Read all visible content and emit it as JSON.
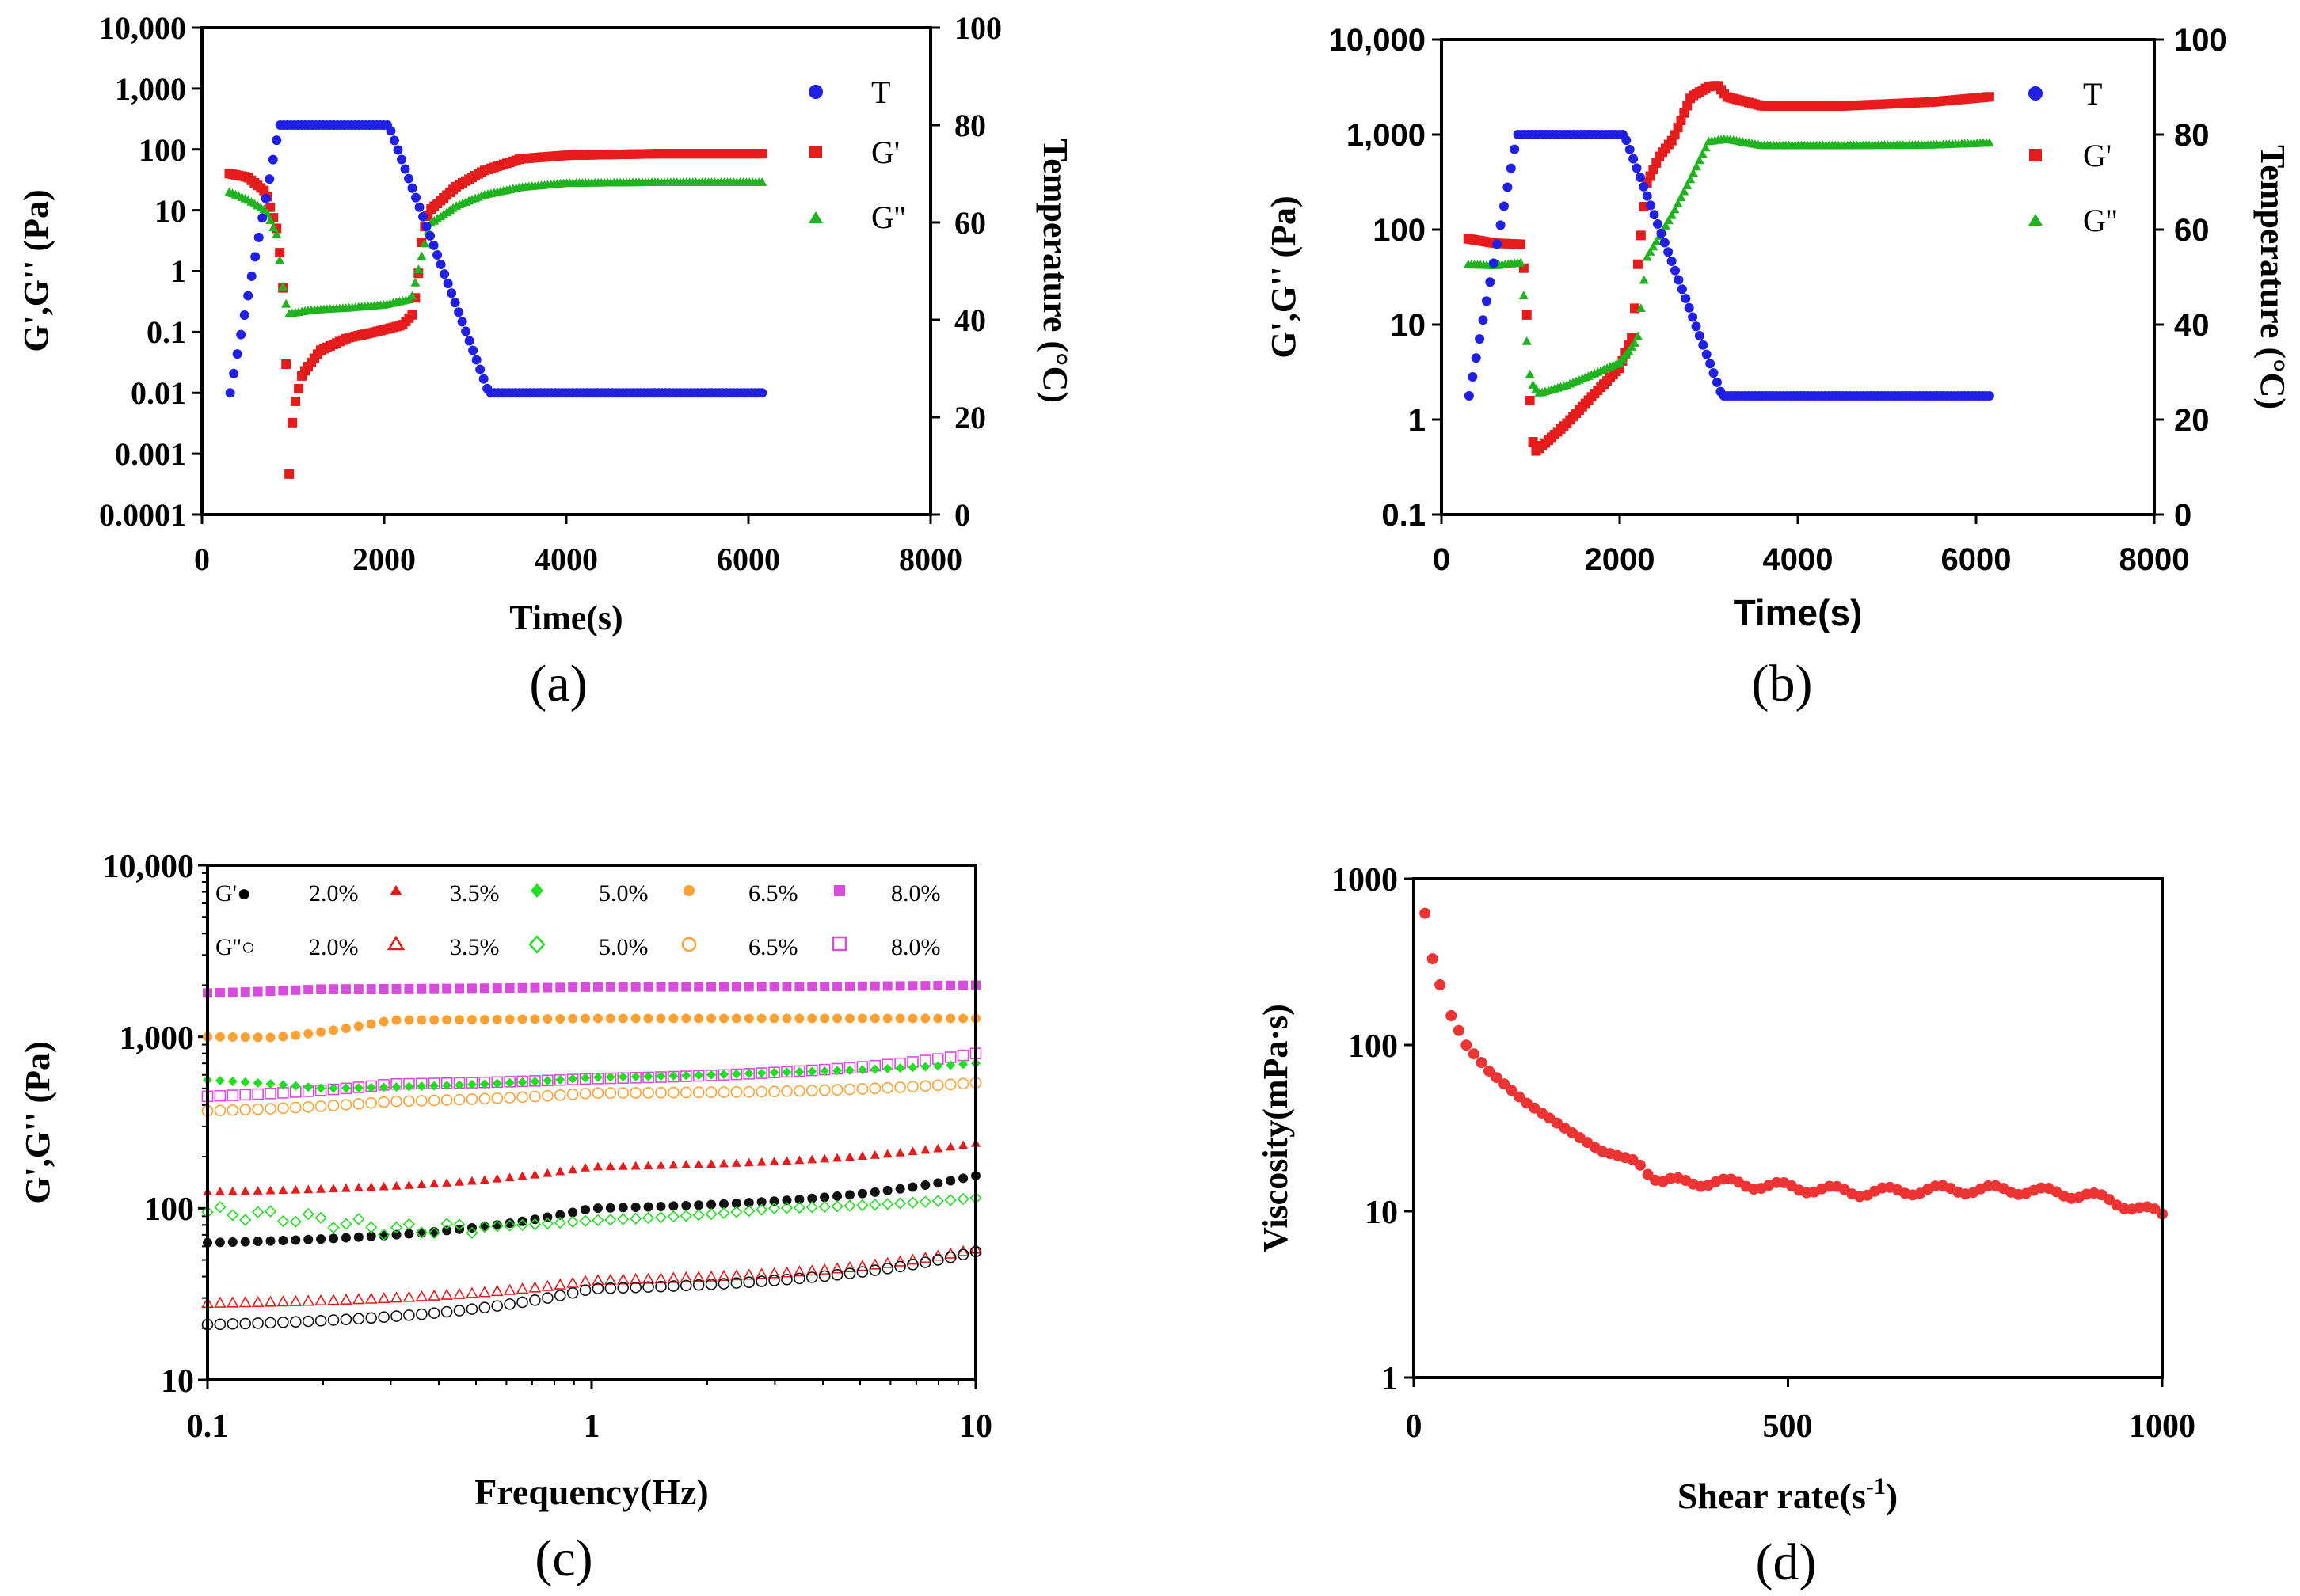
{
  "chart_data": [
    {
      "id": "a",
      "type": "scatter",
      "caption": "(a)",
      "xlabel": "Time(s)",
      "ylabel": "G',G'' (Pa)",
      "ylabel_right": "Temperature (°C)",
      "xlim": [
        0,
        8000
      ],
      "ylim": [
        0.0001,
        10000
      ],
      "yscale": "log",
      "ylim_right": [
        0,
        100
      ],
      "xticks": [
        "0",
        "2000",
        "4000",
        "6000",
        "8000"
      ],
      "yticks": [
        "10,000",
        "1,000",
        "100",
        "10",
        "1",
        "0.1",
        "0.01",
        "0.001",
        "0.0001"
      ],
      "yticks_right": [
        "100",
        "80",
        "60",
        "40",
        "20",
        "0"
      ],
      "legend": [
        {
          "name": "T",
          "marker": "circle",
          "color": "#1f1fe6"
        },
        {
          "name": "G'",
          "marker": "square",
          "color": "#e61c1c"
        },
        {
          "name": "G''",
          "marker": "triangle",
          "color": "#1fb31f"
        }
      ],
      "series": [
        {
          "name": "T",
          "axis": "right",
          "points": [
            [
              310,
              25
            ],
            [
              850,
              80
            ],
            [
              2050,
              80
            ],
            [
              3150,
              25
            ],
            [
              6150,
              25
            ]
          ]
        },
        {
          "name": "G'",
          "axis": "left",
          "points": [
            [
              300,
              40
            ],
            [
              500,
              35
            ],
            [
              700,
              20
            ],
            [
              820,
              5
            ],
            [
              880,
              1
            ],
            [
              920,
              0.05
            ],
            [
              950,
              0.0003
            ],
            [
              1000,
              0.005
            ],
            [
              1100,
              0.02
            ],
            [
              1300,
              0.05
            ],
            [
              1600,
              0.08
            ],
            [
              1900,
              0.1
            ],
            [
              2200,
              0.13
            ],
            [
              2320,
              0.2
            ],
            [
              2380,
              1
            ],
            [
              2420,
              4
            ],
            [
              2500,
              10
            ],
            [
              2800,
              25
            ],
            [
              3100,
              45
            ],
            [
              3500,
              70
            ],
            [
              4000,
              80
            ],
            [
              5000,
              85
            ],
            [
              6150,
              85
            ]
          ]
        },
        {
          "name": "G''",
          "axis": "left",
          "points": [
            [
              300,
              20
            ],
            [
              500,
              15
            ],
            [
              700,
              10
            ],
            [
              820,
              4
            ],
            [
              900,
              0.4
            ],
            [
              950,
              0.2
            ],
            [
              1200,
              0.23
            ],
            [
              1600,
              0.25
            ],
            [
              2000,
              0.28
            ],
            [
              2300,
              0.35
            ],
            [
              2400,
              1.5
            ],
            [
              2500,
              6
            ],
            [
              2800,
              12
            ],
            [
              3100,
              18
            ],
            [
              3500,
              24
            ],
            [
              4000,
              28
            ],
            [
              5000,
              29
            ],
            [
              6150,
              29
            ]
          ]
        }
      ]
    },
    {
      "id": "b",
      "type": "scatter",
      "caption": "(b)",
      "xlabel": "Time(s)",
      "ylabel": "G',G'' (Pa)",
      "ylabel_right": "Temperature (°C)",
      "xlim": [
        0,
        8000
      ],
      "ylim": [
        0.1,
        10000
      ],
      "yscale": "log",
      "ylim_right": [
        0,
        100
      ],
      "xticks": [
        "0",
        "2000",
        "4000",
        "6000",
        "8000"
      ],
      "yticks": [
        "10,000",
        "1,000",
        "100",
        "10",
        "1",
        "0.1"
      ],
      "yticks_right": [
        "100",
        "80",
        "60",
        "40",
        "20",
        "0"
      ],
      "legend": [
        {
          "name": "T",
          "marker": "circle",
          "color": "#1f1fe6"
        },
        {
          "name": "G'",
          "marker": "square",
          "color": "#e61c1c"
        },
        {
          "name": "G''",
          "marker": "triangle",
          "color": "#1fb31f"
        }
      ],
      "series": [
        {
          "name": "T",
          "axis": "right",
          "points": [
            [
              310,
              25
            ],
            [
              850,
              80
            ],
            [
              2050,
              80
            ],
            [
              3150,
              25
            ],
            [
              6150,
              25
            ]
          ]
        },
        {
          "name": "G'",
          "axis": "left",
          "points": [
            [
              300,
              80
            ],
            [
              600,
              72
            ],
            [
              900,
              70
            ],
            [
              950,
              20
            ],
            [
              1000,
              1
            ],
            [
              1040,
              0.45
            ],
            [
              1150,
              0.55
            ],
            [
              1400,
              0.9
            ],
            [
              1700,
              1.8
            ],
            [
              2000,
              3.5
            ],
            [
              2150,
              8
            ],
            [
              2200,
              40
            ],
            [
              2300,
              300
            ],
            [
              2450,
              600
            ],
            [
              2600,
              900
            ],
            [
              2800,
              2500
            ],
            [
              3000,
              3200
            ],
            [
              3100,
              3300
            ],
            [
              3200,
              2500
            ],
            [
              3600,
              2000
            ],
            [
              4500,
              2000
            ],
            [
              5500,
              2200
            ],
            [
              6150,
              2500
            ]
          ]
        },
        {
          "name": "G''",
          "axis": "left",
          "points": [
            [
              300,
              43
            ],
            [
              600,
              42
            ],
            [
              900,
              45
            ],
            [
              950,
              8
            ],
            [
              1000,
              2.5
            ],
            [
              1100,
              1.9
            ],
            [
              1400,
              2.3
            ],
            [
              1700,
              3
            ],
            [
              2000,
              4
            ],
            [
              2200,
              7
            ],
            [
              2300,
              50
            ],
            [
              2600,
              150
            ],
            [
              2800,
              350
            ],
            [
              3000,
              850
            ],
            [
              3200,
              900
            ],
            [
              3600,
              770
            ],
            [
              4500,
              770
            ],
            [
              5500,
              780
            ],
            [
              6150,
              820
            ]
          ]
        }
      ]
    },
    {
      "id": "c",
      "type": "scatter",
      "caption": "(c)",
      "xlabel": "Frequency(Hz)",
      "ylabel": "G',G'' (Pa)",
      "xlim": [
        0.1,
        10
      ],
      "xscale": "log",
      "ylim": [
        10,
        10000
      ],
      "yscale": "log",
      "xticks": [
        "0.1",
        "1",
        "10"
      ],
      "yticks": [
        "10,000",
        "1,000",
        "100",
        "10"
      ],
      "legend_row1_label": "G'●",
      "legend_row2_label": "G''○",
      "legend": [
        {
          "name": "2.0%",
          "color": "#111111",
          "filled_marker": "circle",
          "hollow_marker": "circle"
        },
        {
          "name": "3.5%",
          "color": "#e61c1c",
          "filled_marker": "triangle",
          "hollow_marker": "triangle"
        },
        {
          "name": "5.0%",
          "color": "#22dd22",
          "filled_marker": "diamond",
          "hollow_marker": "diamond"
        },
        {
          "name": "6.5%",
          "color": "#ffa033",
          "filled_marker": "circle",
          "hollow_marker": "circle"
        },
        {
          "name": "8.0%",
          "color": "#d94bdc",
          "filled_marker": "square",
          "hollow_marker": "square"
        }
      ],
      "series": [
        {
          "name": "G' 8.0%",
          "filled": true,
          "points": [
            [
              0.1,
              1800
            ],
            [
              0.2,
              1900
            ],
            [
              1,
              1950
            ],
            [
              10,
              2000
            ]
          ]
        },
        {
          "name": "G' 6.5%",
          "filled": true,
          "points": [
            [
              0.1,
              1000
            ],
            [
              0.15,
              990
            ],
            [
              0.3,
              1250
            ],
            [
              1,
              1280
            ],
            [
              10,
              1280
            ]
          ]
        },
        {
          "name": "G'' 8.0%",
          "filled": false,
          "points": [
            [
              0.1,
              450
            ],
            [
              0.3,
              530
            ],
            [
              1,
              570
            ],
            [
              3,
              620
            ],
            [
              10,
              800
            ]
          ]
        },
        {
          "name": "G' 5.0%",
          "filled": true,
          "points": [
            [
              0.1,
              560
            ],
            [
              0.2,
              500
            ],
            [
              1,
              580
            ],
            [
              3,
              620
            ],
            [
              10,
              700
            ]
          ]
        },
        {
          "name": "G'' 6.5%",
          "filled": false,
          "points": [
            [
              0.1,
              370
            ],
            [
              0.3,
              420
            ],
            [
              1,
              470
            ],
            [
              3,
              480
            ],
            [
              10,
              540
            ]
          ]
        },
        {
          "name": "G' 3.5%",
          "filled": true,
          "points": [
            [
              0.1,
              125
            ],
            [
              1,
              175
            ],
            [
              10,
              240
            ]
          ]
        },
        {
          "name": "G' 2.0%",
          "filled": true,
          "points": [
            [
              0.1,
              63
            ],
            [
              1,
              100
            ],
            [
              10,
              155
            ]
          ]
        },
        {
          "name": "G'' 5.0%",
          "filled": false,
          "points": [
            [
              0.1,
              95
            ],
            [
              0.2,
              85
            ],
            [
              0.3,
              75
            ],
            [
              1,
              85
            ],
            [
              3,
              100
            ],
            [
              10,
              115
            ]
          ]
        },
        {
          "name": "G'' 3.5%",
          "filled": false,
          "points": [
            [
              0.1,
              28
            ],
            [
              1,
              38
            ],
            [
              10,
              58
            ]
          ]
        },
        {
          "name": "G'' 2.0%",
          "filled": false,
          "points": [
            [
              0.1,
              21
            ],
            [
              1,
              34
            ],
            [
              10,
              56
            ]
          ]
        }
      ]
    },
    {
      "id": "d",
      "type": "scatter",
      "caption": "(d)",
      "xlabel": "Shear rate(s",
      "xlabel_sup": "-1",
      "xlabel_close": ")",
      "ylabel": "Viscosity(mPa·s)",
      "xlim": [
        0,
        1000
      ],
      "ylim": [
        1,
        1000
      ],
      "yscale": "log",
      "xticks": [
        "0",
        "500",
        "1000"
      ],
      "yticks": [
        "1000",
        "100",
        "10",
        "1"
      ],
      "series": [
        {
          "name": "Viscosity",
          "color": "#ee3333",
          "points": [
            [
              15,
              620
            ],
            [
              25,
              330
            ],
            [
              35,
              230
            ],
            [
              50,
              150
            ],
            [
              70,
              100
            ],
            [
              100,
              70
            ],
            [
              150,
              45
            ],
            [
              200,
              32
            ],
            [
              250,
              23
            ],
            [
              300,
              20
            ],
            [
              330,
              15
            ],
            [
              400,
              15
            ],
            [
              500,
              14
            ],
            [
              600,
              13
            ],
            [
              700,
              13.5
            ],
            [
              800,
              13.5
            ],
            [
              900,
              12.5
            ],
            [
              950,
              11
            ],
            [
              1000,
              9.5
            ]
          ]
        }
      ]
    }
  ]
}
